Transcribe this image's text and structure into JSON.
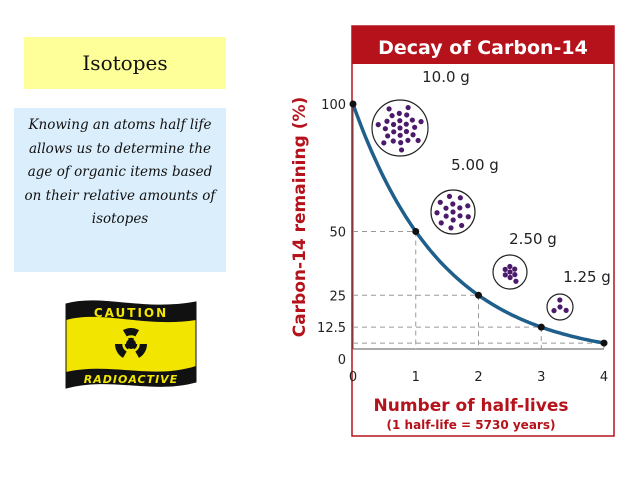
{
  "slide": {
    "title": "Isotopes",
    "description": "Knowing an atoms half life allows us to determine the age of organic items based on their relative amounts of isotopes"
  },
  "flag": {
    "top_text": "CAUTION",
    "bottom_text": "RADIOACTIVE",
    "colors": {
      "yellow": "#f2e500",
      "black": "#111111"
    }
  },
  "chart_data": {
    "type": "line",
    "title": "Decay of Carbon-14",
    "xlabel": "Number of half-lives",
    "xlabel_note": "(1 half-life = 5730 years)",
    "ylabel": "Carbon-14 remaining (%)",
    "x_ticks": [
      "0",
      "1",
      "2",
      "3",
      "4"
    ],
    "y_ticks": [
      "0",
      "12.5",
      "25",
      "50",
      "100"
    ],
    "xlim": [
      0,
      4
    ],
    "ylim": [
      0,
      100
    ],
    "series": [
      {
        "x": [
          0,
          1,
          2,
          3,
          4
        ],
        "y": [
          100,
          50,
          25,
          12.5,
          6.25
        ]
      }
    ],
    "annotations": [
      "10.0 g",
      "5.00 g",
      "2.50 g",
      "1.25 g"
    ],
    "colors": {
      "title_bg": "#b5121b",
      "axis_text": "#b5121b",
      "curve": "#1f5f8b",
      "dots": "#4b1a6b"
    }
  }
}
